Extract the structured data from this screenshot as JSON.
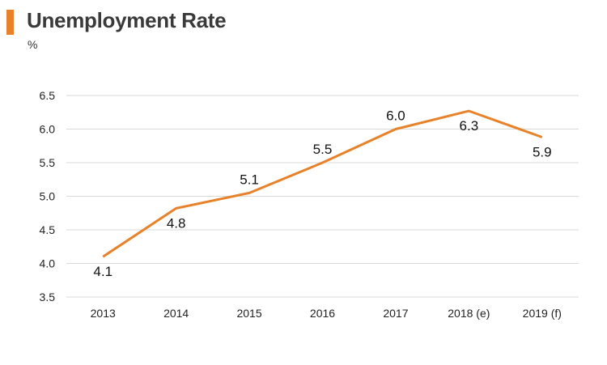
{
  "header": {
    "title": "Unemployment Rate",
    "unit": "%",
    "accent_color": "#e8822a"
  },
  "chart_data": {
    "type": "line",
    "title": "Unemployment Rate",
    "xlabel": "",
    "ylabel": "%",
    "categories": [
      "2013",
      "2014",
      "2015",
      "2016",
      "2017",
      "2018 (e)",
      "2019 (f)"
    ],
    "series": [
      {
        "values": [
          4.1,
          4.8,
          5.1,
          5.5,
          6.0,
          6.3,
          5.9
        ],
        "labels": [
          "4.1",
          "4.8",
          "5.1",
          "5.5",
          "6.0",
          "6.3",
          "5.9"
        ],
        "label_position": [
          "below",
          "below",
          "above",
          "above",
          "above",
          "below",
          "below"
        ],
        "color": "#e8822a"
      }
    ],
    "plotted_values": [
      4.1,
      4.82,
      5.05,
      5.5,
      6.0,
      6.27,
      5.88
    ],
    "ylim": [
      3.5,
      6.5
    ],
    "yticks": [
      "3.5",
      "4.0",
      "4.5",
      "5.0",
      "5.5",
      "6.0",
      "6.5"
    ],
    "grid": true,
    "legend": "none",
    "grid_color": "#d9d9d9"
  }
}
